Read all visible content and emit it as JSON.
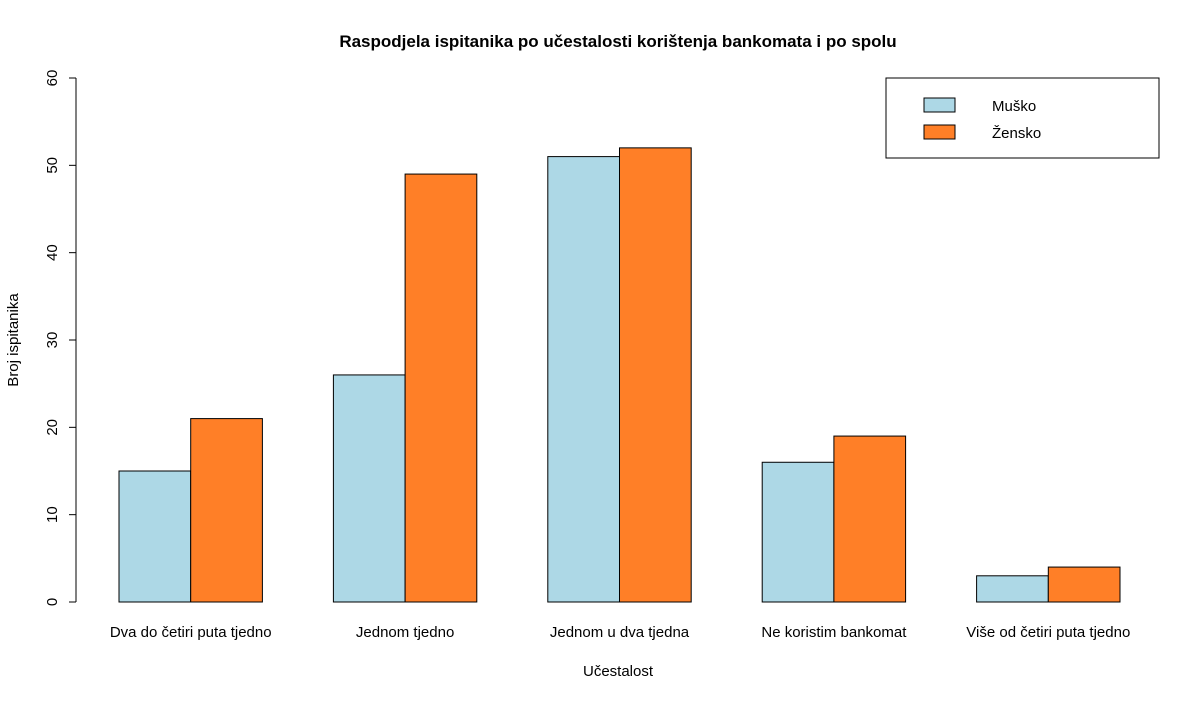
{
  "chart_data": {
    "type": "bar",
    "title": "Raspodjela ispitanika po učestalosti korištenja bankomata i po spolu",
    "xlabel": "Učestalost",
    "ylabel": "Broj ispitanika",
    "categories": [
      "Dva do četiri puta tjedno",
      "Jednom tjedno",
      "Jednom u dva tjedna",
      "Ne koristim bankomat",
      "Više od četiri puta tjedno"
    ],
    "series": [
      {
        "name": "Muško",
        "color": "#add8e6",
        "values": [
          15,
          26,
          51,
          16,
          3
        ]
      },
      {
        "name": "Žensko",
        "color": "#ff7f27",
        "values": [
          21,
          49,
          52,
          19,
          4
        ]
      }
    ],
    "ylim": [
      0,
      60
    ],
    "yticks": [
      0,
      10,
      20,
      30,
      40,
      50,
      60
    ],
    "grid": false,
    "legend_position": "top-right"
  }
}
